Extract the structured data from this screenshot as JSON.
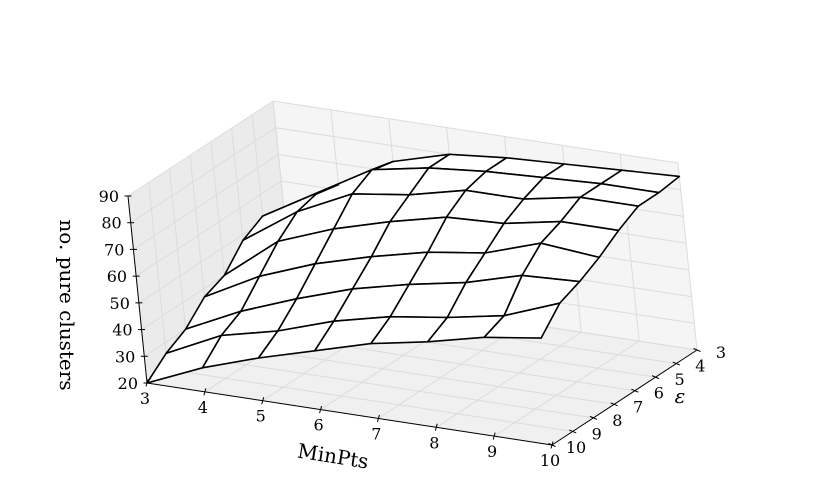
{
  "chart_data": {
    "type": "surface",
    "title": "",
    "xlabel": "MinPts",
    "ylabel": "ε",
    "zlabel": "no. pure clusters",
    "x": [
      3,
      4,
      5,
      6,
      7,
      8,
      9,
      10
    ],
    "y": [
      3,
      4,
      5,
      6,
      7,
      8,
      9,
      10
    ],
    "x_ticks": [
      "3",
      "4",
      "5",
      "6",
      "7",
      "8",
      "9",
      "10"
    ],
    "y_ticks": [
      "3",
      "4",
      "5",
      "6",
      "7",
      "8",
      "9",
      "10"
    ],
    "z_ticks": [
      "20",
      "30",
      "40",
      "50",
      "60",
      "70",
      "80",
      "90"
    ],
    "zlim": [
      20,
      90
    ],
    "grid": true,
    "z": [
      [
        50,
        62,
        74,
        80,
        82,
        83,
        84,
        85
      ],
      [
        52,
        64,
        76,
        80,
        82,
        83,
        84,
        84
      ],
      [
        48,
        62,
        72,
        75,
        80,
        80,
        84,
        84
      ],
      [
        40,
        56,
        64,
        70,
        75,
        76,
        80,
        80
      ],
      [
        37,
        48,
        56,
        62,
        67,
        70,
        77,
        75
      ],
      [
        30,
        40,
        48,
        55,
        60,
        64,
        70,
        71
      ],
      [
        26,
        36,
        41,
        48,
        53,
        56,
        60,
        68
      ],
      [
        20,
        29,
        36,
        42,
        48,
        52,
        57,
        60
      ]
    ]
  }
}
